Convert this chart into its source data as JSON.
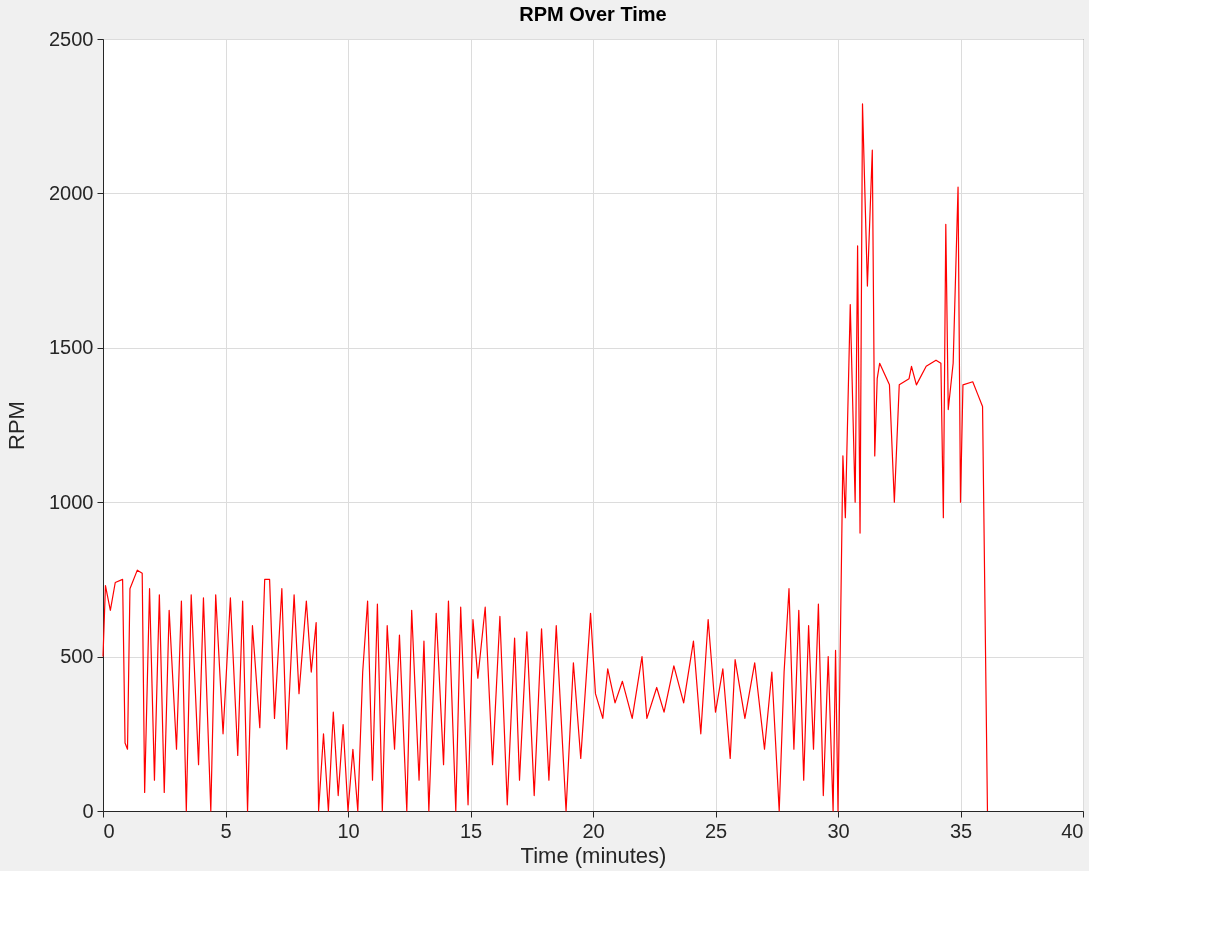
{
  "chart_data": {
    "type": "line",
    "title": "RPM Over Time",
    "xlabel": "Time (minutes)",
    "ylabel": "RPM",
    "xlim": [
      0,
      40
    ],
    "xticks": [
      0,
      5,
      10,
      15,
      20,
      25,
      30,
      35,
      40
    ],
    "ylim": [
      0,
      2500
    ],
    "yticks": [
      0,
      500,
      1000,
      1500,
      2000,
      2500
    ],
    "grid": true,
    "line_style": "solid",
    "marker": "none",
    "x": [
      0,
      0.1,
      0.3,
      0.5,
      0.8,
      0.9,
      1.0,
      1.1,
      1.4,
      1.6,
      1.7,
      1.9,
      2.1,
      2.3,
      2.5,
      2.7,
      3.0,
      3.2,
      3.4,
      3.6,
      3.9,
      4.1,
      4.4,
      4.6,
      4.9,
      5.2,
      5.5,
      5.7,
      5.9,
      6.1,
      6.4,
      6.6,
      6.8,
      7.0,
      7.3,
      7.5,
      7.8,
      8.0,
      8.3,
      8.5,
      8.7,
      8.8,
      9.0,
      9.2,
      9.4,
      9.6,
      9.8,
      10.0,
      10.2,
      10.4,
      10.6,
      10.8,
      11.0,
      11.2,
      11.4,
      11.6,
      11.9,
      12.1,
      12.4,
      12.6,
      12.9,
      13.1,
      13.3,
      13.6,
      13.9,
      14.1,
      14.4,
      14.6,
      14.9,
      15.1,
      15.3,
      15.6,
      15.9,
      16.2,
      16.5,
      16.8,
      17.0,
      17.3,
      17.6,
      17.9,
      18.2,
      18.5,
      18.9,
      19.2,
      19.5,
      19.9,
      20.1,
      20.4,
      20.6,
      20.9,
      21.2,
      21.6,
      22.0,
      22.2,
      22.6,
      22.9,
      23.3,
      23.7,
      24.1,
      24.4,
      24.7,
      25.0,
      25.3,
      25.6,
      25.8,
      26.2,
      26.6,
      27.0,
      27.3,
      27.6,
      27.8,
      28.0,
      28.2,
      28.4,
      28.6,
      28.8,
      29.0,
      29.2,
      29.4,
      29.6,
      29.8,
      29.9,
      30.0,
      30.2,
      30.3,
      30.5,
      30.7,
      30.8,
      30.9,
      31.0,
      31.2,
      31.4,
      31.5,
      31.6,
      31.7,
      32.1,
      32.3,
      32.5,
      32.9,
      33.0,
      33.2,
      33.6,
      34.0,
      34.2,
      34.3,
      34.4,
      34.5,
      34.7,
      34.9,
      35.0,
      35.1,
      35.5,
      35.7,
      35.9,
      36.1
    ],
    "series": [
      {
        "color": "#ff0000",
        "values": [
          500,
          730,
          650,
          740,
          750,
          220,
          200,
          720,
          780,
          770,
          60,
          720,
          100,
          700,
          60,
          650,
          200,
          680,
          0,
          700,
          150,
          690,
          0,
          700,
          250,
          690,
          180,
          680,
          0,
          600,
          270,
          750,
          750,
          300,
          720,
          200,
          700,
          380,
          680,
          450,
          610,
          0,
          250,
          0,
          320,
          50,
          280,
          0,
          200,
          0,
          450,
          680,
          100,
          670,
          0,
          600,
          200,
          570,
          0,
          650,
          100,
          550,
          0,
          640,
          150,
          680,
          0,
          660,
          20,
          620,
          430,
          660,
          150,
          630,
          20,
          560,
          100,
          580,
          50,
          590,
          100,
          600,
          0,
          480,
          170,
          640,
          380,
          300,
          460,
          350,
          420,
          300,
          500,
          300,
          400,
          320,
          470,
          350,
          550,
          250,
          620,
          320,
          460,
          170,
          490,
          300,
          480,
          200,
          450,
          0,
          450,
          720,
          200,
          650,
          100,
          600,
          200,
          670,
          50,
          500,
          0,
          520,
          0,
          1150,
          950,
          1640,
          1000,
          1830,
          900,
          2290,
          1700,
          2140,
          1150,
          1400,
          1450,
          1380,
          1000,
          1380,
          1400,
          1440,
          1380,
          1440,
          1460,
          1450,
          950,
          1900,
          1300,
          1450,
          2020,
          1000,
          1380,
          1390,
          1350,
          1310,
          0
        ]
      }
    ]
  }
}
